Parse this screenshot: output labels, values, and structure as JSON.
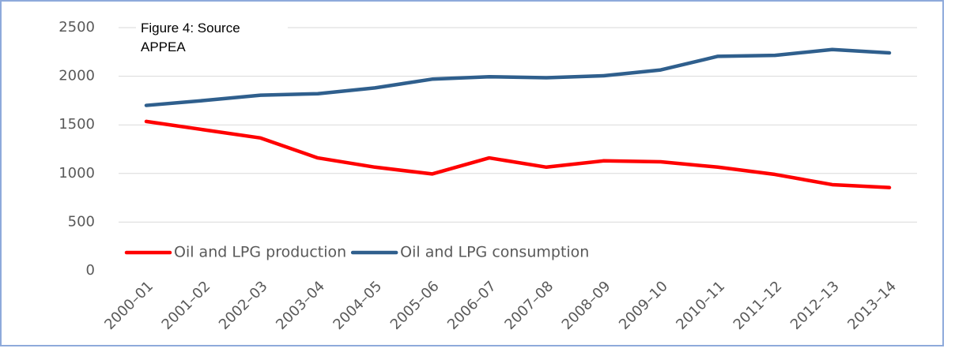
{
  "chart_data": {
    "type": "line",
    "annotation": "Figure 4:  Source APPEA",
    "categories": [
      "2000–01",
      "2001–02",
      "2002–03",
      "2003–04",
      "2004–05",
      "2005–06",
      "2006–07",
      "2007–08",
      "2008–09",
      "2009–10",
      "2010–11",
      "2011–12",
      "2012–13",
      "2013–14"
    ],
    "series": [
      {
        "name": "Oil and LPG production",
        "color": "#ff0000",
        "values": [
          1535,
          1450,
          1365,
          1160,
          1065,
          995,
          1160,
          1065,
          1130,
          1120,
          1065,
          990,
          885,
          855
        ]
      },
      {
        "name": "Oil and LPG consumption",
        "color": "#2f5f8d",
        "values": [
          1700,
          1750,
          1805,
          1820,
          1880,
          1970,
          1995,
          1985,
          2005,
          2065,
          2205,
          2215,
          2275,
          2240
        ]
      }
    ],
    "ylim": [
      0,
      2500
    ],
    "yticks": [
      0,
      500,
      1000,
      1500,
      2000,
      2500
    ],
    "grid": true,
    "legend": "lower left"
  }
}
